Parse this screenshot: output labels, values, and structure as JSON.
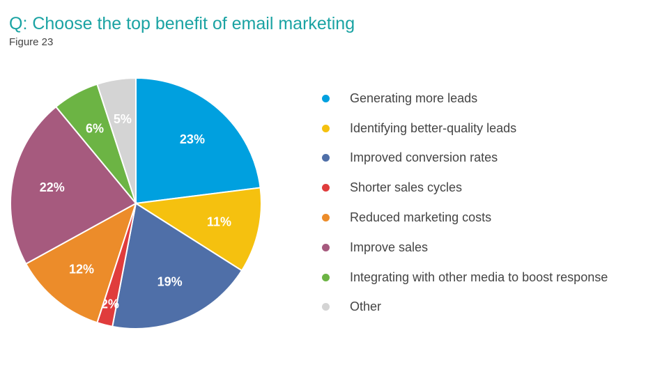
{
  "header": {
    "title": "Q: Choose the top benefit of email marketing",
    "figure": "Figure 23"
  },
  "chart_data": {
    "type": "pie",
    "start_angle_deg": 0,
    "direction": "clockwise",
    "slices": [
      {
        "label": "Generating more leads",
        "value": 23,
        "display": "23%",
        "color": "#00a0df"
      },
      {
        "label": "Identifying better-quality leads",
        "value": 11,
        "display": "11%",
        "color": "#f5c10f"
      },
      {
        "label": "Improved conversion rates",
        "value": 19,
        "display": "19%",
        "color": "#4f6fa8"
      },
      {
        "label": "Shorter sales cycles",
        "value": 2,
        "display": "2%",
        "color": "#e03c3c"
      },
      {
        "label": "Reduced marketing costs",
        "value": 12,
        "display": "12%",
        "color": "#ec8c2a"
      },
      {
        "label": "Improve sales",
        "value": 22,
        "display": "22%",
        "color": "#a65a7e"
      },
      {
        "label": "Integrating with other media to boost response",
        "value": 6,
        "display": "6%",
        "color": "#6cb444"
      },
      {
        "label": "Other",
        "value": 5,
        "display": "5%",
        "color": "#d4d4d4"
      }
    ],
    "legend_position": "right"
  }
}
